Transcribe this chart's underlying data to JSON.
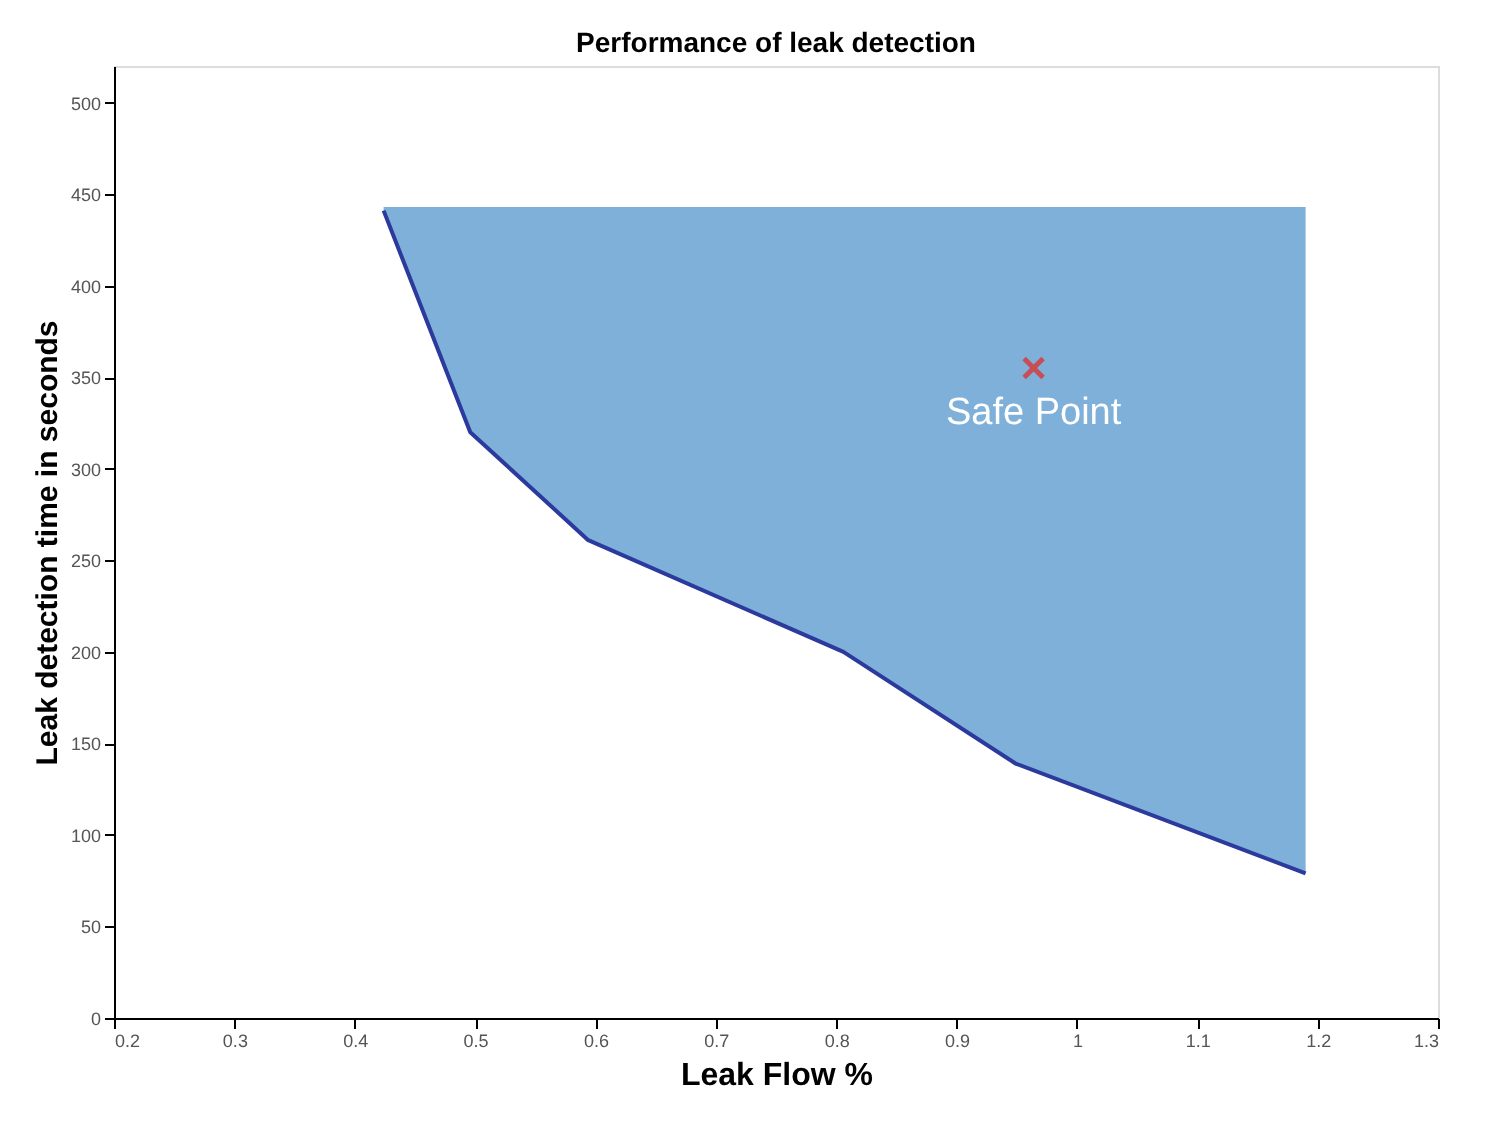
{
  "chart_data": {
    "type": "line",
    "title": "Performance of leak detection",
    "xlabel": "Leak Flow %",
    "ylabel": "Leak detection time in seconds",
    "xlim": [
      0.2,
      1.3
    ],
    "xticks": [
      0.2,
      0.3,
      0.4,
      0.5,
      0.6,
      0.7,
      0.8,
      0.9,
      1,
      1.1,
      1.2,
      1.3
    ],
    "ylim": [
      0,
      520
    ],
    "yticks": [
      0,
      50,
      100,
      150,
      200,
      250,
      300,
      350,
      400,
      450,
      500
    ],
    "grid": false,
    "series": [
      {
        "color": "#2b3a9c",
        "x": [
          0.424,
          0.496,
          0.594,
          0.806,
          0.949,
          1.19
        ],
        "values": [
          441,
          320,
          261,
          200,
          139,
          79
        ],
        "lower": [
          441,
          320,
          261,
          200,
          139,
          79
        ],
        "upper": [
          443,
          443,
          443,
          443,
          443,
          443
        ],
        "line_style": "solid"
      },
      {
        "type": "scatter",
        "name": "Safe Point",
        "color": "#e8251f",
        "x": [
          0.964
        ],
        "values": [
          355
        ],
        "marker": "cross"
      }
    ]
  }
}
